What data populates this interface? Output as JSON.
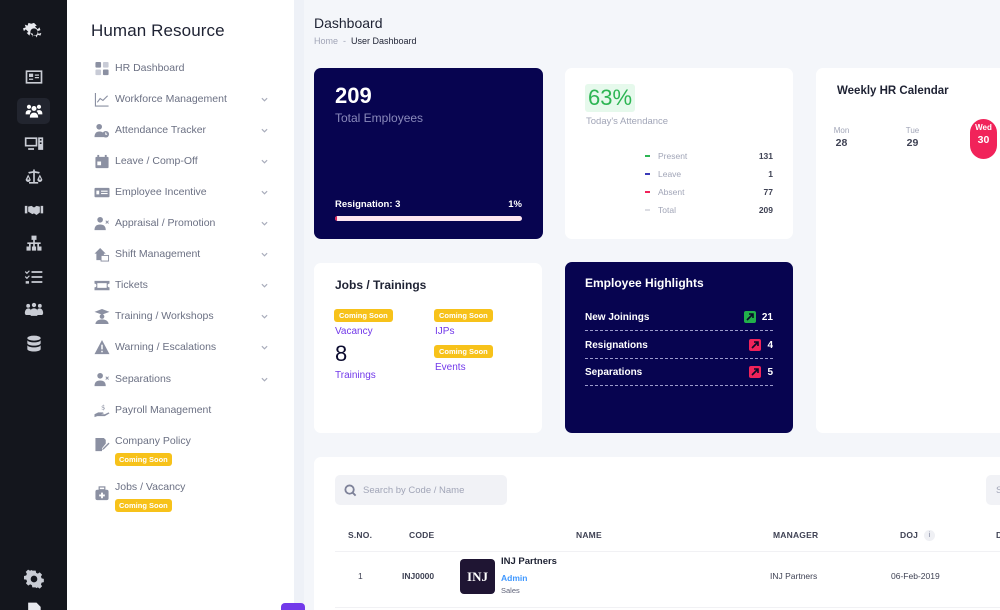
{
  "rail": {
    "items": [
      {
        "icon": "logo-icon"
      },
      {
        "icon": "id-card-icon"
      },
      {
        "icon": "users-icon",
        "active": true
      },
      {
        "icon": "computer-icon"
      },
      {
        "icon": "scale-icon"
      },
      {
        "icon": "handshake-icon"
      },
      {
        "icon": "org-chart-icon"
      },
      {
        "icon": "checklist-icon"
      },
      {
        "icon": "team-icon"
      },
      {
        "icon": "database-icon"
      }
    ],
    "bottom": [
      {
        "icon": "gear-icon"
      },
      {
        "icon": "document-icon"
      }
    ]
  },
  "sidebar": {
    "title": "Human Resource",
    "items": [
      {
        "label": "HR Dashboard",
        "icon": "grid-icon",
        "expandable": false
      },
      {
        "label": "Workforce Management",
        "icon": "line-chart-icon",
        "expandable": true
      },
      {
        "label": "Attendance Tracker",
        "icon": "user-clock-icon",
        "expandable": true
      },
      {
        "label": "Leave / Comp-Off",
        "icon": "calendar-icon",
        "expandable": true
      },
      {
        "label": "Employee Incentive",
        "icon": "money-card-icon",
        "expandable": true
      },
      {
        "label": "Appraisal / Promotion",
        "icon": "user-x-icon",
        "expandable": true
      },
      {
        "label": "Shift Management",
        "icon": "house-swap-icon",
        "expandable": true
      },
      {
        "label": "Tickets",
        "icon": "ticket-icon",
        "expandable": true
      },
      {
        "label": "Training / Workshops",
        "icon": "graduate-icon",
        "expandable": true
      },
      {
        "label": "Warning / Escalations",
        "icon": "warning-icon",
        "expandable": true
      },
      {
        "label": "Separations",
        "icon": "user-x-icon",
        "expandable": true
      },
      {
        "label": "Payroll Management",
        "icon": "payroll-hand-icon",
        "expandable": false
      },
      {
        "label": "Company Policy",
        "icon": "policy-icon",
        "expandable": false,
        "badge": "Coming Soon"
      },
      {
        "label": "Jobs / Vacancy",
        "icon": "briefcase-medical-icon",
        "expandable": false,
        "badge": "Coming Soon"
      }
    ]
  },
  "header": {
    "title": "Dashboard",
    "breadcrumb": {
      "home": "Home",
      "separator": "-",
      "current": "User Dashboard"
    }
  },
  "total_employees": {
    "count": "209",
    "label": "Total Employees",
    "resignation_label": "Resignation: 3",
    "resignation_pct": "1%",
    "progress_value": 1
  },
  "attendance": {
    "percent": "63%",
    "label": "Today's Attendance",
    "rows": [
      {
        "name": "Present",
        "value": "131",
        "color": "#2db553"
      },
      {
        "name": "Leave",
        "value": "1",
        "color": "#3a3ab8"
      },
      {
        "name": "Absent",
        "value": "77",
        "color": "#f1235a"
      },
      {
        "name": "Total",
        "value": "209",
        "color": "#dcdde3"
      }
    ]
  },
  "calendar": {
    "title": "Weekly HR Calendar",
    "days": [
      {
        "name": "Mon",
        "date": "28",
        "today": false
      },
      {
        "name": "Tue",
        "date": "29",
        "today": false
      },
      {
        "name": "Wed",
        "date": "30",
        "today": true
      }
    ]
  },
  "jobs_trainings": {
    "title": "Jobs / Trainings",
    "badge": "Coming Soon",
    "vacancy_label": "Vacancy",
    "trainings_count": "8",
    "trainings_label": "Trainings",
    "ijps_label": "IJPs",
    "events_label": "Events"
  },
  "highlights": {
    "title": "Employee Highlights",
    "rows": [
      {
        "label": "New Joinings",
        "value": "21",
        "trend_color": "#22b04b"
      },
      {
        "label": "Resignations",
        "value": "4",
        "trend_color": "#f1235a"
      },
      {
        "label": "Separations",
        "value": "5",
        "trend_color": "#f1235a"
      }
    ]
  },
  "employee_table": {
    "search_placeholder": "Search by Code / Name",
    "secondary_search_placeholder": "S",
    "columns": [
      "S.NO.",
      "CODE",
      "NAME",
      "MANAGER",
      "DOJ",
      "D"
    ],
    "rows": [
      {
        "sno": "1",
        "code": "INJ0000",
        "logo_text": "INJ",
        "name": "INJ Partners",
        "role": "Admin",
        "department": "Sales",
        "manager": "INJ Partners",
        "doj": "06-Feb-2019"
      }
    ]
  }
}
